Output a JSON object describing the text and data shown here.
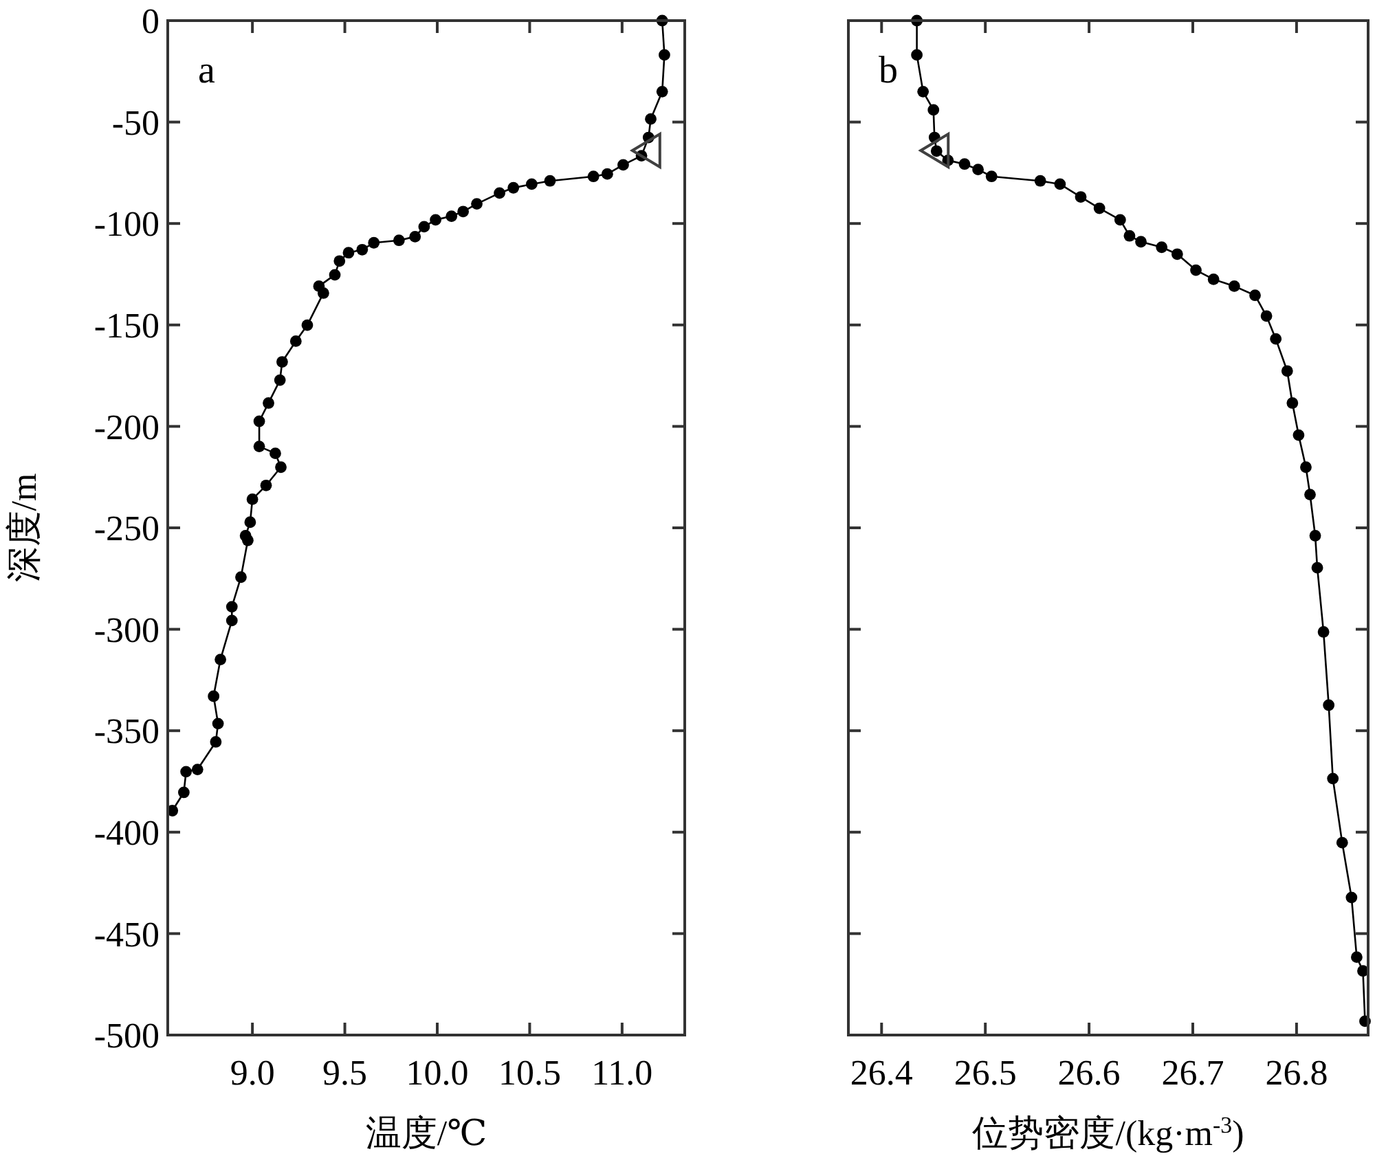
{
  "chart_data": [
    {
      "type": "line",
      "xlabel": "温度/℃",
      "ylabel": "深度/m",
      "annotations": [
        "a"
      ],
      "xlim": [
        8.542,
        11.339
      ],
      "xticks": [
        {
          "value": 9,
          "label": "9.0"
        },
        9.5,
        {
          "value": 10,
          "label": "10.0"
        },
        10.5,
        {
          "value": 11,
          "label": "11.0"
        }
      ],
      "ylim": [
        -500,
        0
      ],
      "yticks": [
        -500,
        -450,
        -400,
        -350,
        -300,
        -250,
        -200,
        -150,
        -100,
        -50,
        0
      ],
      "grid": false,
      "marker": "circle",
      "line_style": "solid",
      "series": [
        {
          "color": "#000000",
          "x": [
            11.217,
            11.229,
            11.217,
            11.155,
            11.143,
            11.105,
            11.006,
            10.92,
            10.845,
            10.61,
            10.511,
            10.412,
            10.337,
            10.214,
            10.14,
            10.077,
            9.991,
            9.929,
            9.88,
            9.793,
            9.657,
            9.594,
            9.52,
            9.471,
            9.446,
            9.36,
            9.384,
            9.297,
            9.235,
            9.161,
            9.149,
            9.087,
            9.037,
            9.037,
            9.124,
            9.154,
            9.074,
            9.0,
            8.988,
            8.963,
            8.975,
            8.938,
            8.889,
            8.889,
            8.827,
            8.79,
            8.814,
            8.802,
            8.703,
            8.641,
            8.629,
            8.567
          ],
          "values": [
            0,
            -16.9,
            -35,
            -48.5,
            -57.6,
            -66.6,
            -71.1,
            -75.6,
            -76.8,
            -79,
            -80.6,
            -82.4,
            -85,
            -90.3,
            -94.1,
            -96.4,
            -98.2,
            -101.6,
            -106.5,
            -108.3,
            -109.5,
            -112.9,
            -114.4,
            -118.5,
            -125.3,
            -130.9,
            -134.3,
            -150.1,
            -158,
            -168.2,
            -177.2,
            -188.5,
            -197.5,
            -209.9,
            -213.3,
            -220.1,
            -229.1,
            -235.9,
            -247.2,
            -253.9,
            -256.2,
            -274.3,
            -288.9,
            -295.7,
            -314.9,
            -333,
            -346.5,
            -355.5,
            -369.1,
            -370.2,
            -380.4,
            -389.4
          ]
        },
        {
          "type": "scatter",
          "marker": "triangle",
          "color": "#404040",
          "x": [
            11.13
          ],
          "values": [
            -64
          ]
        }
      ]
    },
    {
      "type": "line",
      "xlabel": "位势密度/(kg·m$^{-3}$)",
      "annotations": [
        "b"
      ],
      "xlim": [
        26.368,
        26.869
      ],
      "xticks": [
        26.4,
        26.5,
        26.6,
        26.7,
        26.8
      ],
      "ylim": [
        -500,
        0
      ],
      "yticks": [
        -500,
        -450,
        -400,
        -350,
        -300,
        -250,
        -200,
        -150,
        -100,
        -50,
        0
      ],
      "tick_labels": "x",
      "grid": false,
      "marker": "circle",
      "line_style": "solid",
      "series": [
        {
          "color": "#000000",
          "x": [
            26.434,
            26.434,
            26.44,
            26.45,
            26.451,
            26.453,
            26.464,
            26.48,
            26.493,
            26.506,
            26.553,
            26.572,
            26.592,
            26.61,
            26.63,
            26.639,
            26.65,
            26.67,
            26.685,
            26.703,
            26.72,
            26.74,
            26.76,
            26.771,
            26.78,
            26.791,
            26.796,
            26.802,
            26.809,
            26.813,
            26.818,
            26.82,
            26.826,
            26.831,
            26.835,
            26.844,
            26.853,
            26.858,
            26.864,
            26.866
          ],
          "values": [
            0,
            -16.9,
            -35,
            -44,
            -57.6,
            -64.3,
            -68.9,
            -70.7,
            -73.4,
            -76.8,
            -79,
            -80.6,
            -86.9,
            -92.5,
            -98.2,
            -106.1,
            -109,
            -111.7,
            -115.1,
            -123,
            -127.5,
            -130.9,
            -135.4,
            -145.6,
            -156.9,
            -172.7,
            -188.5,
            -204.3,
            -220.1,
            -233.6,
            -253.9,
            -269.7,
            -301.3,
            -337.4,
            -373.6,
            -405.2,
            -432.2,
            -461.6,
            -468.4,
            -493.2
          ]
        },
        {
          "type": "scatter",
          "marker": "triangle",
          "color": "#404040",
          "x": [
            26.451
          ],
          "values": [
            -64
          ]
        }
      ]
    }
  ]
}
